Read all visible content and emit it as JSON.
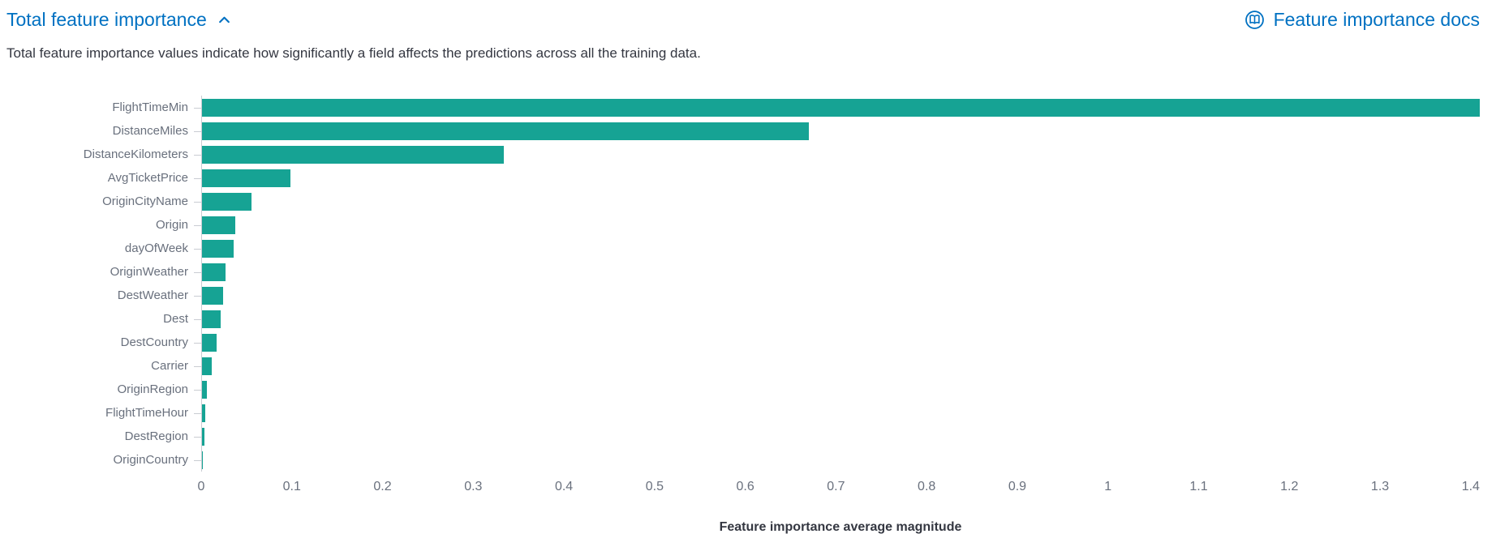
{
  "header": {
    "title": "Total feature importance",
    "chevron_icon": "chevron-up",
    "docs_icon": "documentation-icon",
    "docs_link_label": "Feature importance docs",
    "description": "Total feature importance values indicate how significantly a field affects the predictions across all the training data."
  },
  "colors": {
    "link_blue": "#0071c2",
    "bar_teal": "#16a394",
    "axis_label_gray": "#69707d",
    "text_dark": "#343741",
    "axis_line_gray": "#c9ccd2"
  },
  "chart_data": {
    "type": "bar",
    "orientation": "horizontal",
    "title": "Total feature importance",
    "categories": [
      "FlightTimeMin",
      "DistanceMiles",
      "DistanceKilometers",
      "AvgTicketPrice",
      "OriginCityName",
      "Origin",
      "dayOfWeek",
      "OriginWeather",
      "DestWeather",
      "Dest",
      "DestCountry",
      "Carrier",
      "OriginRegion",
      "FlightTimeHour",
      "DestRegion",
      "OriginCountry"
    ],
    "values": [
      1.41,
      0.67,
      0.333,
      0.098,
      0.055,
      0.037,
      0.035,
      0.026,
      0.023,
      0.021,
      0.016,
      0.011,
      0.005,
      0.004,
      0.003,
      0.0005
    ],
    "xlabel": "Feature importance average magnitude",
    "ylabel": "",
    "xlim": [
      0,
      1.41
    ],
    "xticks": [
      "0",
      "0.1",
      "0.2",
      "0.3",
      "0.4",
      "0.5",
      "0.6",
      "0.7",
      "0.8",
      "0.9",
      "1",
      "1.1",
      "1.2",
      "1.3",
      "1.4"
    ],
    "bar_color": "#16a394",
    "grid": false,
    "legend": "none"
  }
}
